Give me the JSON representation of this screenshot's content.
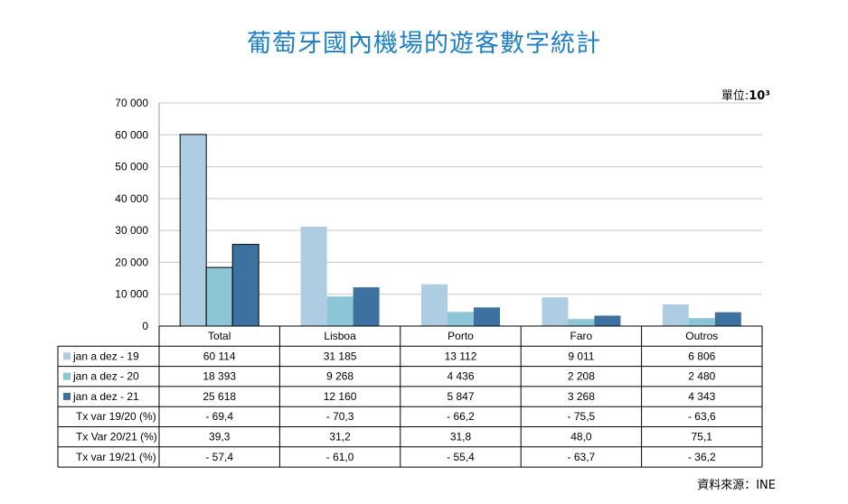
{
  "title": "葡萄牙國內機場的遊客數字統計",
  "unit_label": "單位:",
  "unit_value": "10³",
  "source": "資料來源：INE",
  "colors": {
    "title": "#1f7fc4",
    "series": [
      "#aecde2",
      "#8cc6d6",
      "#3d72a0"
    ],
    "grid": "#c8c8c8"
  },
  "chart_data": {
    "type": "bar",
    "title": "葡萄牙國內機場的遊客數字統計",
    "categories": [
      "Total",
      "Lisboa",
      "Porto",
      "Faro",
      "Outros"
    ],
    "series": [
      {
        "name": "jan a dez - 19",
        "values": [
          60114,
          31185,
          13112,
          9011,
          6806
        ],
        "labels": [
          "60 114",
          "31 185",
          "13 112",
          "9 011",
          "6 806"
        ]
      },
      {
        "name": "jan a dez - 20",
        "values": [
          18393,
          9268,
          4436,
          2208,
          2480
        ],
        "labels": [
          "18 393",
          "9 268",
          "4 436",
          "2 208",
          "2 480"
        ]
      },
      {
        "name": "jan a dez - 21",
        "values": [
          25618,
          12160,
          5847,
          3268,
          4343
        ],
        "labels": [
          "25 618",
          "12 160",
          "5 847",
          "3 268",
          "4 343"
        ]
      }
    ],
    "rates": [
      {
        "name": "Tx var 19/20 (%)",
        "values": [
          "- 69,4",
          "- 70,3",
          "- 66,2",
          "- 75,5",
          "- 63,6"
        ]
      },
      {
        "name": "Tx Var 20/21 (%)",
        "values": [
          "39,3",
          "31,2",
          "31,8",
          "48,0",
          "75,1"
        ]
      },
      {
        "name": "Tx var 19/21 (%)",
        "values": [
          "- 57,4",
          "- 61,0",
          "- 55,4",
          "- 63,7",
          "- 36,2"
        ]
      }
    ],
    "ylim": [
      0,
      70000
    ],
    "yticks": [
      0,
      10000,
      20000,
      30000,
      40000,
      50000,
      60000,
      70000
    ],
    "ytick_labels": [
      "0",
      "10 000",
      "20 000",
      "30 000",
      "40 000",
      "50 000",
      "60 000",
      "70 000"
    ],
    "grid": true,
    "legend": "data-table"
  }
}
